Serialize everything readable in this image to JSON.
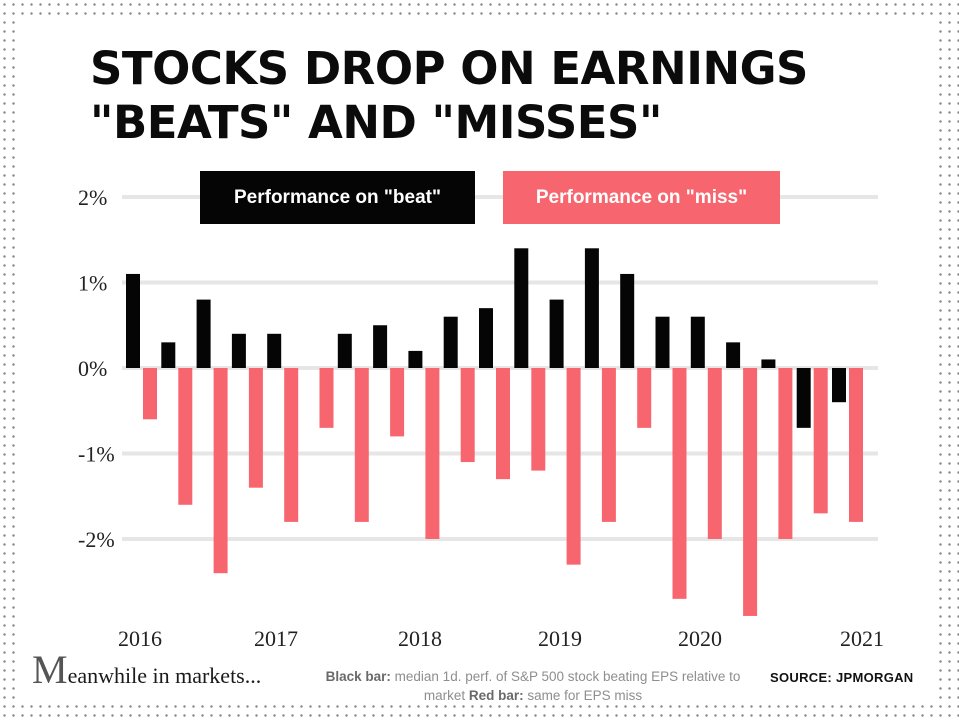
{
  "title_line1": "STOCKS DROP ON EARNINGS",
  "title_line2": "\"BEATS\" AND \"MISSES\"",
  "chart_data": {
    "type": "bar",
    "y_ticks": [
      "2%",
      "1%",
      "0%",
      "-1%",
      "-2%"
    ],
    "y_tick_values": [
      2,
      1,
      0,
      -1,
      -2
    ],
    "ylim": [
      -3,
      2.2
    ],
    "x_tick_labels": [
      "2016",
      "2017",
      "2018",
      "2019",
      "2020",
      "2021"
    ],
    "grid": true,
    "series": [
      {
        "name": "Performance on \"beat\"",
        "color": "#050505",
        "values": [
          1.1,
          0.3,
          0.8,
          0.4,
          0.4,
          0.0,
          0.4,
          0.5,
          0.2,
          0.6,
          0.7,
          1.4,
          0.8,
          1.4,
          1.1,
          0.6,
          0.6,
          0.3,
          0.1,
          -0.7,
          -0.4
        ]
      },
      {
        "name": "Performance on \"miss\"",
        "color": "#f7666f",
        "values": [
          -0.6,
          -1.6,
          -2.4,
          -1.4,
          -1.8,
          -0.7,
          -1.8,
          -0.8,
          -2.0,
          -1.1,
          -1.3,
          -1.2,
          -2.3,
          -1.8,
          -0.7,
          -2.7,
          -2.0,
          -2.9,
          -2.0,
          -1.7,
          -1.8
        ]
      }
    ]
  },
  "logo": {
    "initial": "M",
    "rest": "eanwhile in markets..."
  },
  "note": {
    "black_label": "Black bar:",
    "black_text": " median 1d. perf. of S&P 500 stock beating EPS relative to market ",
    "red_label": "Red bar:",
    "red_text": " same for EPS miss"
  },
  "source": "SOURCE:  JPMORGAN"
}
